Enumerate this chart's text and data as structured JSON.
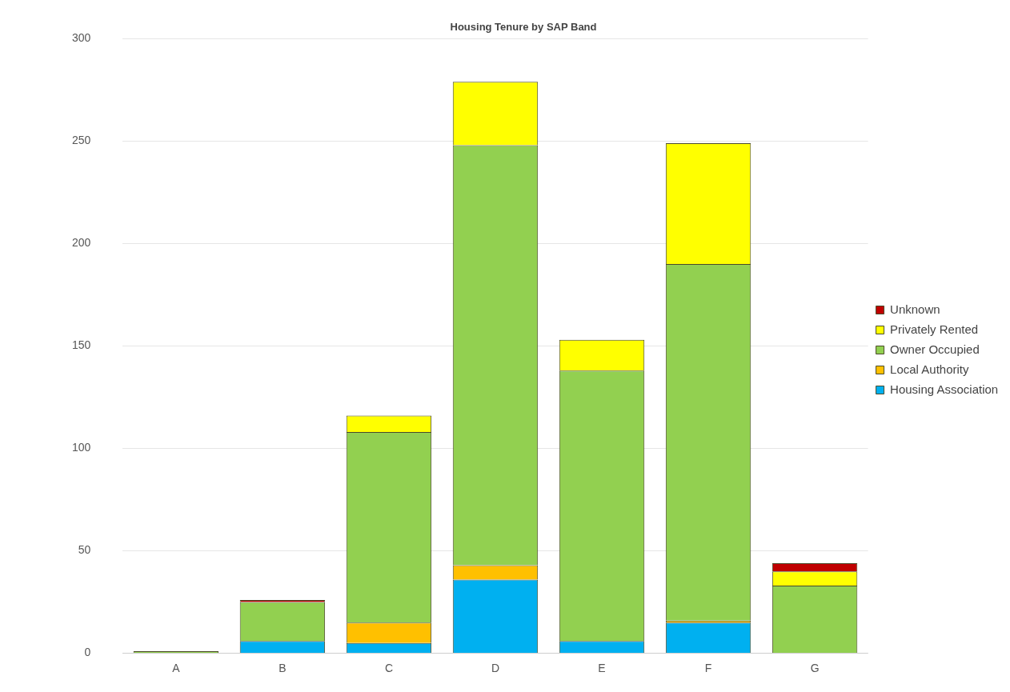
{
  "chart_data": {
    "type": "bar",
    "title": "Housing Tenure by SAP Band",
    "categories": [
      "A",
      "B",
      "C",
      "D",
      "E",
      "F",
      "G"
    ],
    "stacked": true,
    "series": [
      {
        "name": "Housing Association",
        "color": "#00b0f0",
        "values": [
          0,
          6,
          5,
          36,
          6,
          15,
          0
        ]
      },
      {
        "name": "Local Authority",
        "color": "#ffc000",
        "values": [
          0,
          0,
          10,
          7,
          0,
          1,
          0
        ]
      },
      {
        "name": "Owner Occupied",
        "color": "#92d050",
        "values": [
          1,
          19,
          93,
          205,
          132,
          174,
          33
        ]
      },
      {
        "name": "Privately Rented",
        "color": "#ffff00",
        "values": [
          0,
          0,
          8,
          31,
          15,
          59,
          7
        ]
      },
      {
        "name": "Unknown",
        "color": "#c00000",
        "values": [
          0,
          1,
          0,
          0,
          0,
          0,
          4
        ]
      }
    ],
    "ylim": [
      0,
      300
    ],
    "yticks": [
      0,
      50,
      100,
      150,
      200,
      250,
      300
    ],
    "grid": "y",
    "legend": "right"
  }
}
